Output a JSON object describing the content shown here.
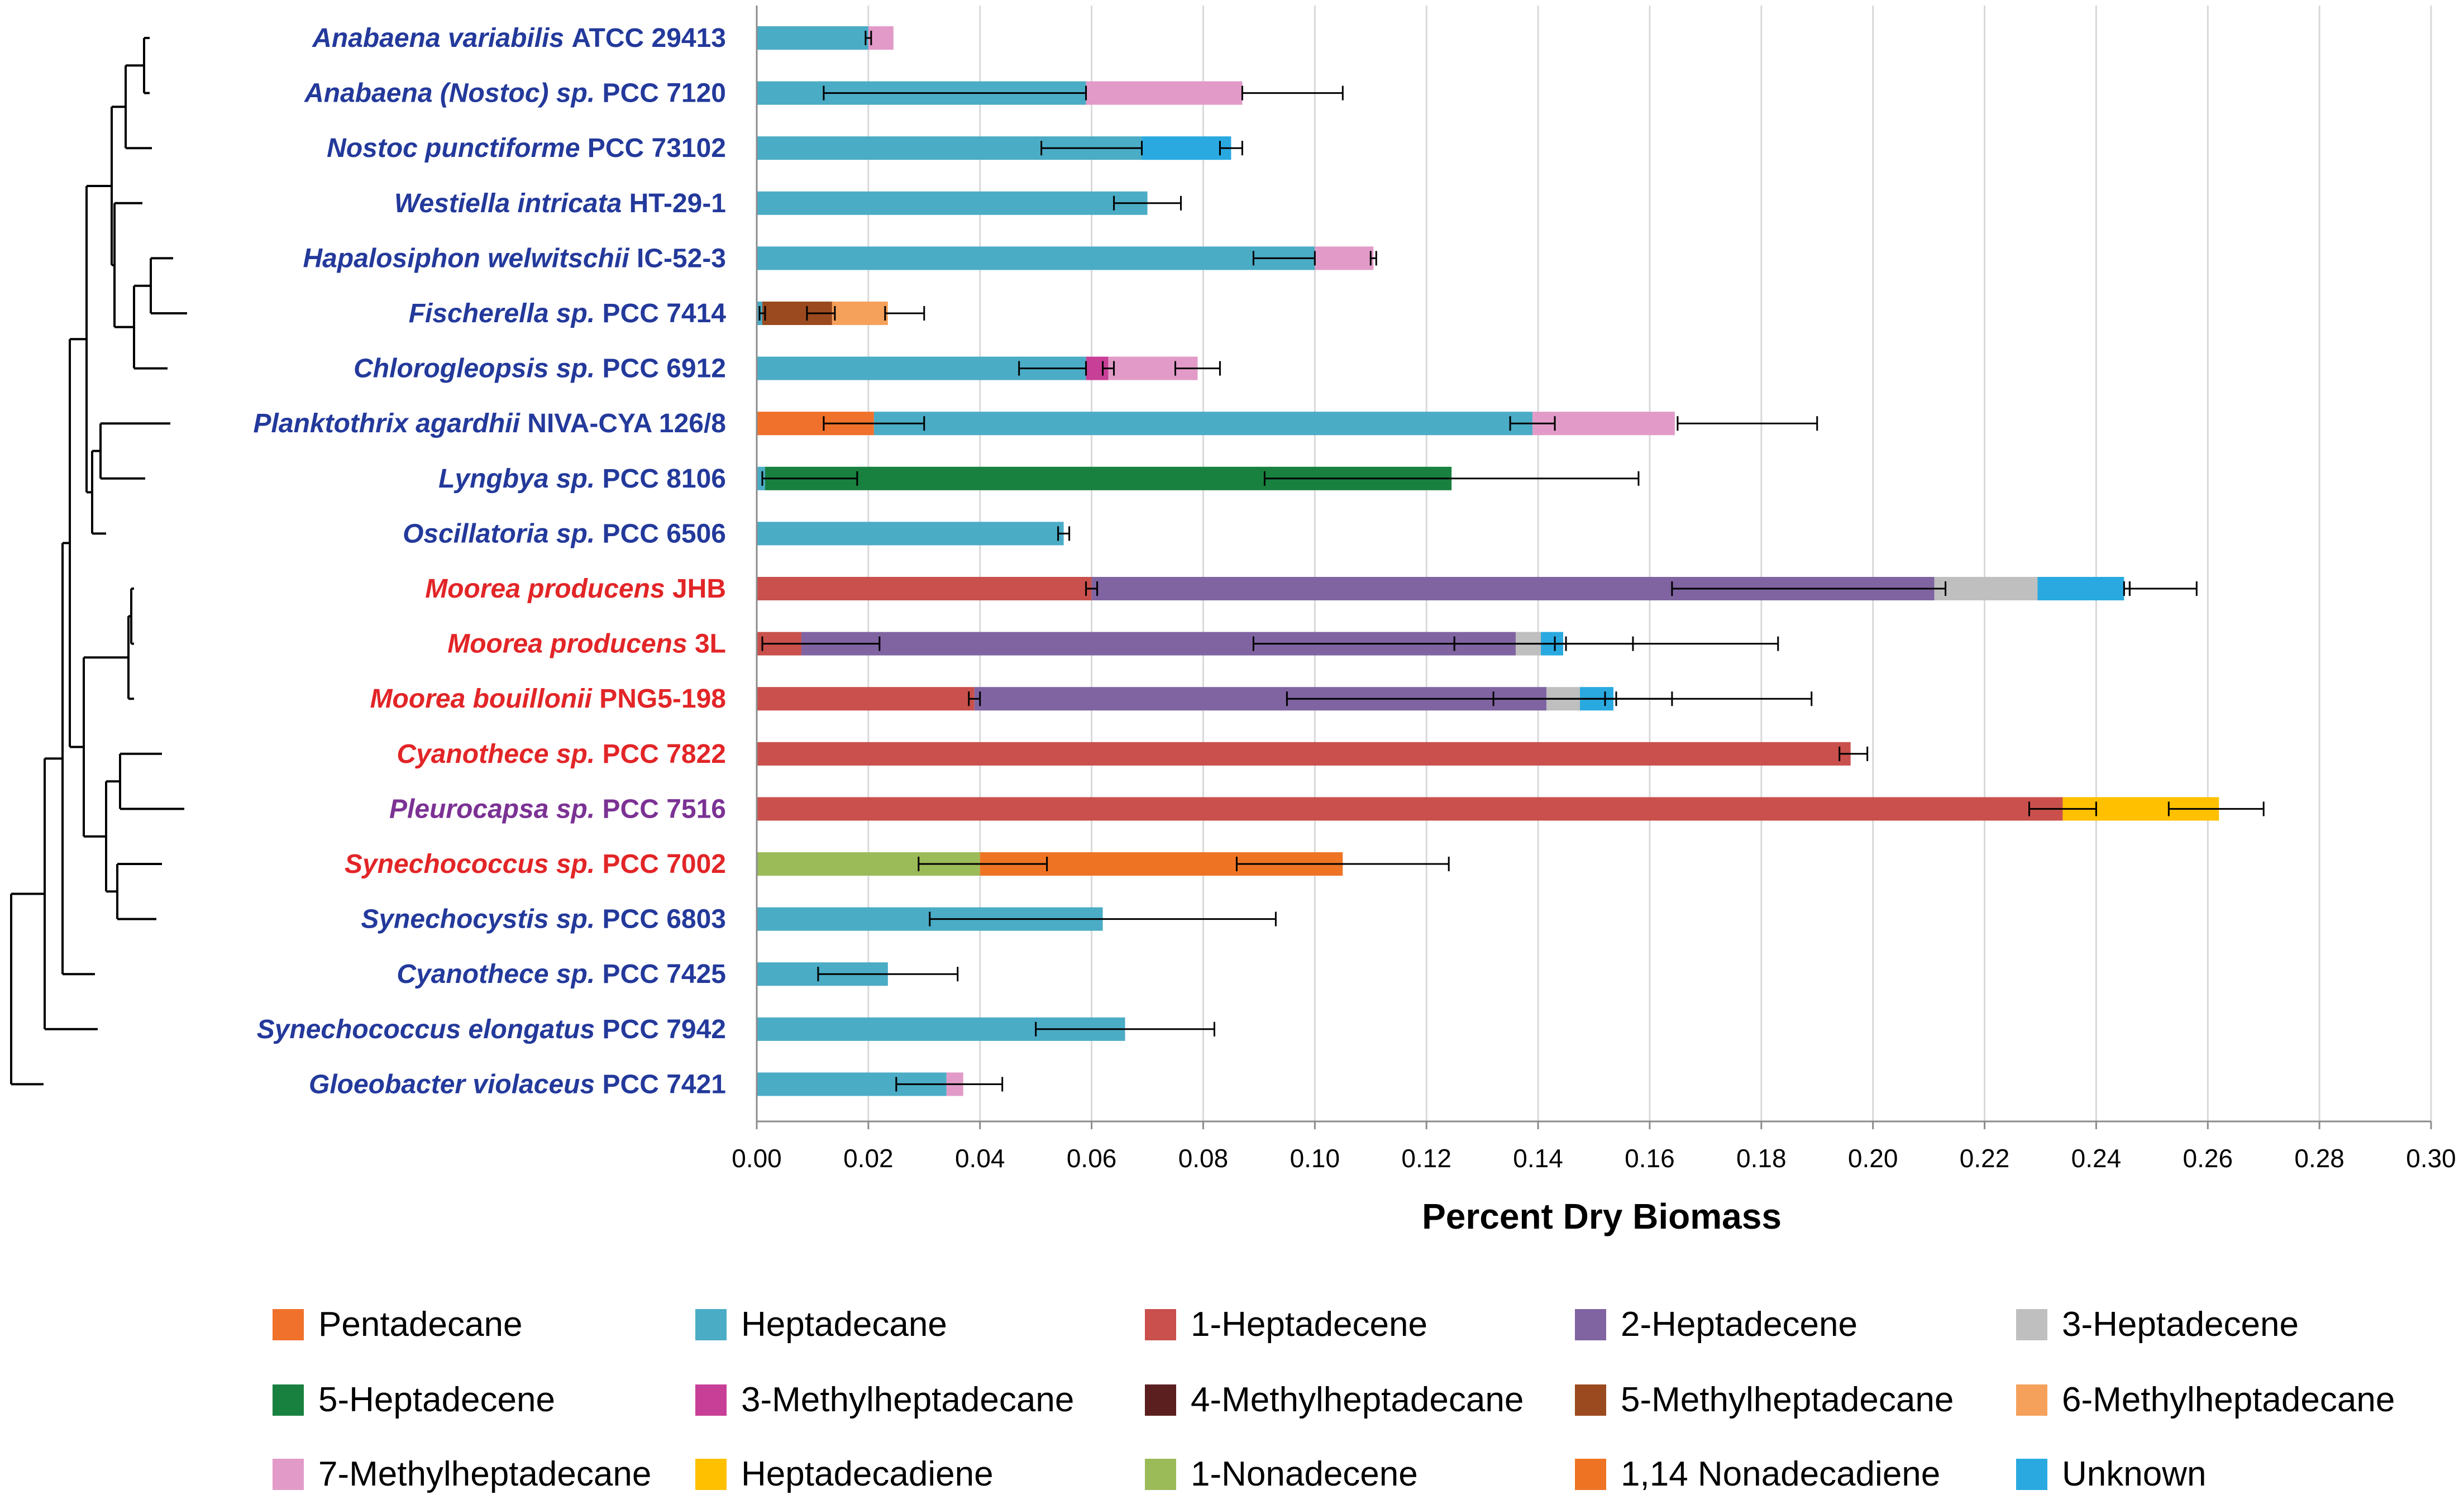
{
  "chart_data": {
    "type": "bar",
    "orientation": "horizontal",
    "stacked": true,
    "xlabel": "Percent Dry Biomass",
    "xlim": [
      0,
      0.3
    ],
    "xticks": [
      "0.00",
      "0.02",
      "0.04",
      "0.06",
      "0.08",
      "0.10",
      "0.12",
      "0.14",
      "0.16",
      "0.18",
      "0.20",
      "0.22",
      "0.24",
      "0.26",
      "0.28",
      "0.30"
    ],
    "grid": "vertical",
    "legend_position": "bottom",
    "has_tree": true,
    "legend": [
      {
        "name": "Pentadecane",
        "color": "#F0712B"
      },
      {
        "name": "Heptadecane",
        "color": "#4BACC6"
      },
      {
        "name": "1-Heptadecene",
        "color": "#C9504C"
      },
      {
        "name": "2-Heptadecene",
        "color": "#8064A2"
      },
      {
        "name": "3-Heptadecene",
        "color": "#BFBFBF"
      },
      {
        "name": "5-Heptadecene",
        "color": "#198140"
      },
      {
        "name": "3-Methylheptadecane",
        "color": "#C83F97"
      },
      {
        "name": "4-Methylheptadecane",
        "color": "#5B1F20"
      },
      {
        "name": "5-Methylheptadecane",
        "color": "#9B4A1F"
      },
      {
        "name": "6-Methylheptadecane",
        "color": "#F6A15B"
      },
      {
        "name": "7-Methylheptadecane",
        "color": "#E29BC8"
      },
      {
        "name": "Heptadecadiene",
        "color": "#FFC000"
      },
      {
        "name": "1-Nonadecene",
        "color": "#9BBB59"
      },
      {
        "name": "1,14 Nonadecadiene",
        "color": "#EE7424"
      },
      {
        "name": "Unknown",
        "color": "#29A9E0"
      }
    ],
    "rows": [
      {
        "name": "Anabaena variabilis",
        "strain": "ATCC 29413",
        "color": "#23399B",
        "segments": [
          {
            "series": "Heptadecane",
            "value": 0.02
          },
          {
            "series": "7-Methylheptadecane",
            "value": 0.0045
          }
        ],
        "errors": [
          [
            0.0195,
            0.0205
          ]
        ]
      },
      {
        "name": "Anabaena (Nostoc) sp.",
        "strain": "PCC 7120",
        "color": "#23399B",
        "segments": [
          {
            "series": "Heptadecane",
            "value": 0.059
          },
          {
            "series": "7-Methylheptadecane",
            "value": 0.028
          }
        ],
        "errors": [
          [
            0.012,
            0.059
          ],
          [
            0.087,
            0.105
          ]
        ]
      },
      {
        "name": "Nostoc punctiforme",
        "strain": "PCC 73102",
        "color": "#23399B",
        "segments": [
          {
            "series": "Heptadecane",
            "value": 0.069
          },
          {
            "series": "Unknown",
            "value": 0.016
          }
        ],
        "errors": [
          [
            0.051,
            0.069
          ],
          [
            0.083,
            0.087
          ]
        ]
      },
      {
        "name": "Westiella intricata",
        "strain": "HT-29-1",
        "color": "#23399B",
        "segments": [
          {
            "series": "Heptadecane",
            "value": 0.07
          }
        ],
        "errors": [
          [
            0.064,
            0.076
          ]
        ]
      },
      {
        "name": "Hapalosiphon welwitschii",
        "strain": "IC-52-3",
        "color": "#23399B",
        "segments": [
          {
            "series": "Heptadecane",
            "value": 0.1
          },
          {
            "series": "7-Methylheptadecane",
            "value": 0.0105
          }
        ],
        "errors": [
          [
            0.089,
            0.1
          ],
          [
            0.11,
            0.111
          ]
        ]
      },
      {
        "name": "Fischerella sp.",
        "strain": "PCC  7414",
        "color": "#23399B",
        "segments": [
          {
            "series": "Heptadecane",
            "value": 0.001
          },
          {
            "series": "5-Methylheptadecane",
            "value": 0.0125
          },
          {
            "series": "6-Methylheptadecane",
            "value": 0.01
          }
        ],
        "errors": [
          [
            0.0005,
            0.0015
          ],
          [
            0.009,
            0.014
          ],
          [
            0.023,
            0.03
          ]
        ]
      },
      {
        "name": "Chlorogleopsis sp.",
        "strain": "PCC 6912",
        "color": "#23399B",
        "segments": [
          {
            "series": "Heptadecane",
            "value": 0.059
          },
          {
            "series": "3-Methylheptadecane",
            "value": 0.004
          },
          {
            "series": "7-Methylheptadecane",
            "value": 0.016
          }
        ],
        "errors": [
          [
            0.047,
            0.059
          ],
          [
            0.062,
            0.064
          ],
          [
            0.075,
            0.083
          ]
        ]
      },
      {
        "name": "Planktothrix agardhii",
        "strain": "NIVA-CYA 126/8",
        "color": "#23399B",
        "segments": [
          {
            "series": "Pentadecane",
            "value": 0.021
          },
          {
            "series": "Heptadecane",
            "value": 0.118
          },
          {
            "series": "7-Methylheptadecane",
            "value": 0.0255
          }
        ],
        "errors": [
          [
            0.012,
            0.03
          ],
          [
            0.135,
            0.143
          ],
          [
            0.165,
            0.19
          ]
        ]
      },
      {
        "name": "Lyngbya sp.",
        "strain": "PCC 8106",
        "color": "#23399B",
        "segments": [
          {
            "series": "Heptadecane",
            "value": 0.0015
          },
          {
            "series": "5-Heptadecene",
            "value": 0.123
          }
        ],
        "errors": [
          [
            0.001,
            0.018
          ],
          [
            0.091,
            0.158
          ]
        ]
      },
      {
        "name": "Oscillatoria sp.",
        "strain": "PCC 6506",
        "color": "#23399B",
        "segments": [
          {
            "series": "Heptadecane",
            "value": 0.055
          }
        ],
        "errors": [
          [
            0.054,
            0.056
          ]
        ]
      },
      {
        "name": "Moorea producens",
        "strain": "JHB",
        "color": "#E22527",
        "segments": [
          {
            "series": "1-Heptadecene",
            "value": 0.06
          },
          {
            "series": "2-Heptadecene",
            "value": 0.151
          },
          {
            "series": "3-Heptadecene",
            "value": 0.0185
          },
          {
            "series": "Unknown",
            "value": 0.0155
          }
        ],
        "errors": [
          [
            0.059,
            0.061
          ],
          [
            0.164,
            0.213
          ],
          [
            0.245,
            0.246
          ],
          [
            0.246,
            0.258
          ]
        ]
      },
      {
        "name": "Moorea producens",
        "strain": "3L",
        "color": "#E22527",
        "segments": [
          {
            "series": "1-Heptadecene",
            "value": 0.008
          },
          {
            "series": "2-Heptadecene",
            "value": 0.128
          },
          {
            "series": "3-Heptadecene",
            "value": 0.0045
          },
          {
            "series": "Unknown",
            "value": 0.004
          }
        ],
        "errors": [
          [
            0.001,
            0.022
          ],
          [
            0.089,
            0.183
          ],
          [
            0.125,
            0.157
          ],
          [
            0.143,
            0.145
          ]
        ]
      },
      {
        "name": "Moorea bouillonii",
        "strain": "PNG5-198",
        "color": "#E22527",
        "segments": [
          {
            "series": "1-Heptadecene",
            "value": 0.039
          },
          {
            "series": "2-Heptadecene",
            "value": 0.1025
          },
          {
            "series": "3-Heptadecene",
            "value": 0.006
          },
          {
            "series": "Unknown",
            "value": 0.006
          }
        ],
        "errors": [
          [
            0.038,
            0.04
          ],
          [
            0.095,
            0.189
          ],
          [
            0.132,
            0.164
          ],
          [
            0.152,
            0.154
          ]
        ]
      },
      {
        "name": "Cyanothece sp.",
        "strain": "PCC 7822",
        "color": "#E22527",
        "segments": [
          {
            "series": "1-Heptadecene",
            "value": 0.196
          }
        ],
        "errors": [
          [
            0.194,
            0.199
          ]
        ]
      },
      {
        "name": "Pleurocapsa sp.",
        "strain": "PCC 7516",
        "color": "#7B3294",
        "segments": [
          {
            "series": "1-Heptadecene",
            "value": 0.234
          },
          {
            "series": "Heptadecadiene",
            "value": 0.028
          }
        ],
        "errors": [
          [
            0.228,
            0.24
          ],
          [
            0.253,
            0.27
          ]
        ]
      },
      {
        "name": "Synechococcus sp.",
        "strain": "PCC 7002",
        "color": "#E22527",
        "segments": [
          {
            "series": "1-Nonadecene",
            "value": 0.04
          },
          {
            "series": "1,14 Nonadecadiene",
            "value": 0.065
          }
        ],
        "errors": [
          [
            0.029,
            0.052
          ],
          [
            0.086,
            0.124
          ]
        ]
      },
      {
        "name": "Synechocystis sp.",
        "strain": "PCC 6803",
        "color": "#23399B",
        "segments": [
          {
            "series": "Heptadecane",
            "value": 0.062
          }
        ],
        "errors": [
          [
            0.031,
            0.093
          ]
        ]
      },
      {
        "name": "Cyanothece sp.",
        "strain": "PCC 7425",
        "color": "#23399B",
        "segments": [
          {
            "series": "Heptadecane",
            "value": 0.0235
          }
        ],
        "errors": [
          [
            0.011,
            0.036
          ]
        ]
      },
      {
        "name": "Synechococcus elongatus",
        "strain": "PCC 7942",
        "color": "#23399B",
        "segments": [
          {
            "series": "Heptadecane",
            "value": 0.066
          }
        ],
        "errors": [
          [
            0.05,
            0.082
          ]
        ]
      },
      {
        "name": "Gloeobacter violaceus",
        "strain": "PCC 7421",
        "color": "#23399B",
        "segments": [
          {
            "series": "Heptadecane",
            "value": 0.034
          },
          {
            "series": "7-Methylheptadecane",
            "value": 0.003
          }
        ],
        "errors": [
          [
            0.025,
            0.044
          ]
        ]
      }
    ]
  }
}
